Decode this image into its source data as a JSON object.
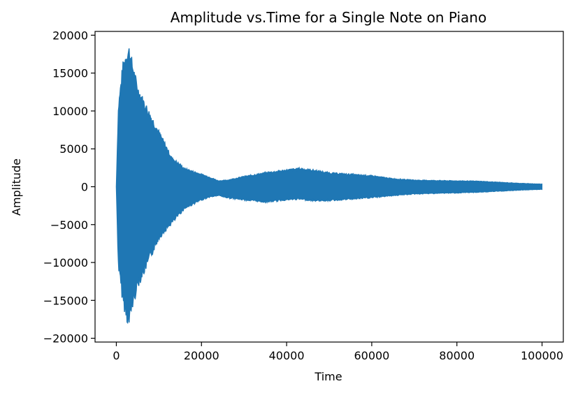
{
  "chart_data": {
    "type": "line",
    "title": "Amplitude vs.Time for a Single Note on Piano",
    "xlabel": "Time",
    "ylabel": "Amplitude",
    "xlim": [
      -5000,
      105000
    ],
    "ylim": [
      -20500,
      20500
    ],
    "xticks": [
      0,
      20000,
      40000,
      60000,
      80000,
      100000
    ],
    "yticks": [
      -20000,
      -15000,
      -10000,
      -5000,
      0,
      5000,
      10000,
      15000,
      20000
    ],
    "grid": false,
    "color": "#1f77b4",
    "envelope": {
      "x": [
        0,
        500,
        1500,
        2500,
        3000,
        3500,
        5000,
        7000,
        10000,
        13000,
        16000,
        20000,
        22000,
        24000,
        26000,
        30000,
        35000,
        40000,
        43000,
        46000,
        50000,
        55000,
        60000,
        65000,
        70000,
        75000,
        80000,
        85000,
        90000,
        95000,
        100000
      ],
      "upper": [
        0,
        11000,
        16500,
        18500,
        18800,
        17500,
        13500,
        11000,
        7500,
        4000,
        2500,
        1700,
        1300,
        800,
        900,
        1400,
        1900,
        2300,
        2500,
        2300,
        1900,
        1700,
        1500,
        1100,
        900,
        850,
        800,
        750,
        600,
        450,
        350
      ],
      "lower": [
        0,
        -11000,
        -15500,
        -18000,
        -18700,
        -17000,
        -13500,
        -11000,
        -7000,
        -5000,
        -3000,
        -1800,
        -1400,
        -1200,
        -1500,
        -1800,
        -2100,
        -1800,
        -1700,
        -1900,
        -1900,
        -1700,
        -1500,
        -1200,
        -1000,
        -900,
        -850,
        -750,
        -600,
        -450,
        -350
      ]
    }
  }
}
